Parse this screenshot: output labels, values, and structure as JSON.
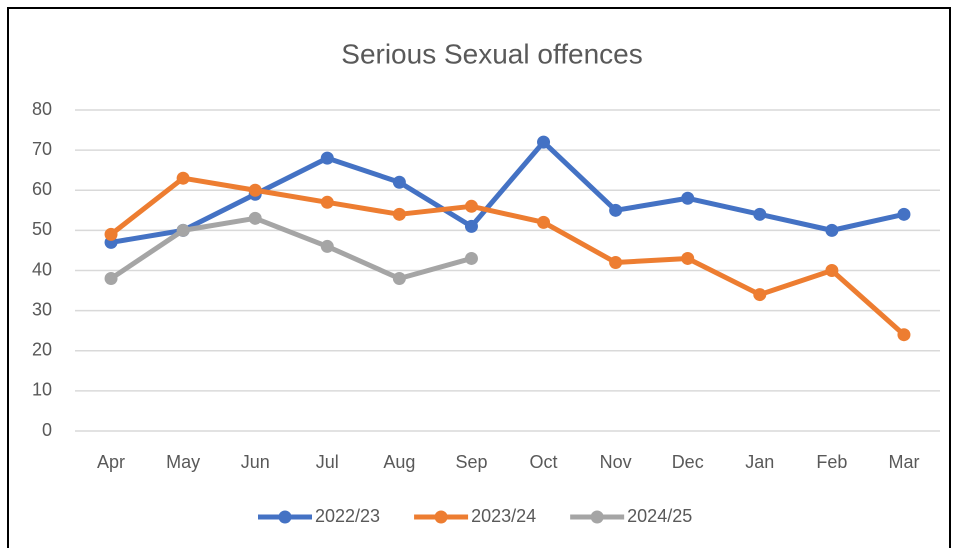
{
  "chart_data": {
    "type": "line",
    "title": "Serious Sexual offences",
    "categories": [
      "Apr",
      "May",
      "Jun",
      "Jul",
      "Aug",
      "Sep",
      "Oct",
      "Nov",
      "Dec",
      "Jan",
      "Feb",
      "Mar"
    ],
    "series": [
      {
        "name": "2022/23",
        "color": "#4472c4",
        "values": [
          47,
          50,
          59,
          68,
          62,
          51,
          72,
          55,
          58,
          54,
          50,
          54
        ]
      },
      {
        "name": "2023/24",
        "color": "#ed7d31",
        "values": [
          49,
          63,
          60,
          57,
          54,
          56,
          52,
          42,
          43,
          34,
          40,
          24
        ]
      },
      {
        "name": "2024/25",
        "color": "#a5a5a5",
        "values": [
          38,
          50,
          53,
          46,
          38,
          43,
          null,
          null,
          null,
          null,
          null,
          null
        ]
      }
    ],
    "ylim": [
      0,
      80
    ],
    "yticks": [
      0,
      10,
      20,
      30,
      40,
      50,
      60,
      70,
      80
    ],
    "grid": true,
    "legend": "bottom"
  }
}
